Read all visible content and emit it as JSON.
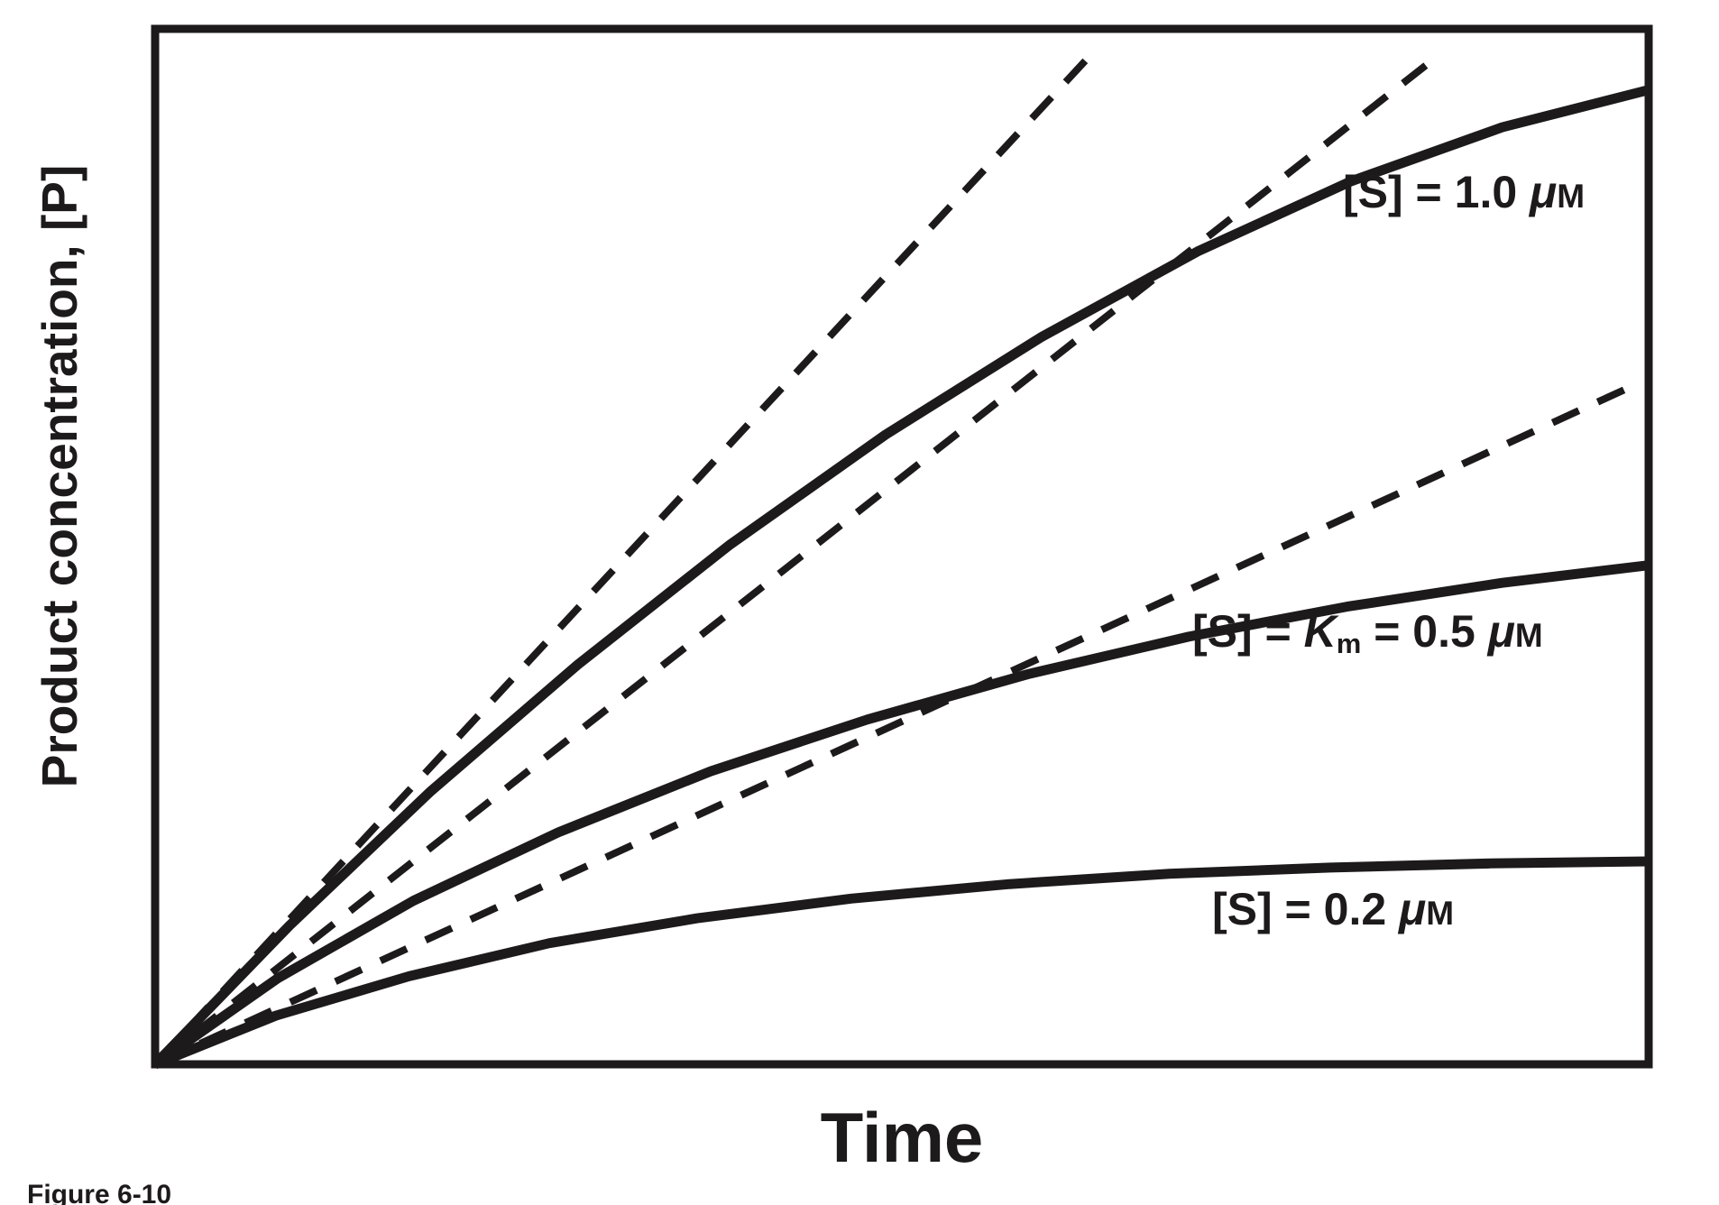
{
  "figure": {
    "caption": "Figure 6-10",
    "xlabel": "Time",
    "ylabel": "Product concentration, [P]"
  },
  "labels": [
    {
      "pre": "[S] = 1.0 ",
      "k": "",
      "ksub": "",
      "mid": "",
      "mu": "μ",
      "unit": "M"
    },
    {
      "pre": "[S] = ",
      "k": "K",
      "ksub": "m",
      "mid": " = 0.5 ",
      "mu": "μ",
      "unit": "M"
    },
    {
      "pre": "[S] = 0.2 ",
      "k": "",
      "ksub": "",
      "mid": "",
      "mu": "μ",
      "unit": "M"
    }
  ],
  "colors": {
    "ink": "#1d1a1b",
    "background": "#ffffff"
  },
  "chart_data": {
    "type": "line",
    "title": "",
    "xlabel": "Time",
    "ylabel": "Product concentration, [P]",
    "x_ticks": [],
    "y_ticks": [],
    "xlim": [
      0,
      1
    ],
    "ylim": [
      0,
      1
    ],
    "grid": false,
    "legend_position": "inline-labels",
    "note": "Axes are unlabeled; values are estimated in relative (arbitrary) units. Solid lines are enzyme progress curves; dashed lines are initial-velocity tangents at t = 0.",
    "series": [
      {
        "name": "[S] = 1.0 μM",
        "role": "progress-curve",
        "line_style": "solid",
        "x": [
          0,
          0.09,
          0.184,
          0.283,
          0.385,
          0.489,
          0.593,
          0.698,
          0.801,
          0.902,
          1.0
        ],
        "y": [
          0,
          0.134,
          0.263,
          0.386,
          0.502,
          0.608,
          0.702,
          0.785,
          0.853,
          0.905,
          0.941
        ]
      },
      {
        "name": "[S] = Km = 0.5 μM",
        "role": "progress-curve",
        "line_style": "solid",
        "x": [
          0,
          0.082,
          0.173,
          0.27,
          0.372,
          0.477,
          0.585,
          0.692,
          0.798,
          0.902,
          1.0
        ],
        "y": [
          0,
          0.083,
          0.158,
          0.224,
          0.283,
          0.333,
          0.377,
          0.413,
          0.442,
          0.465,
          0.482
        ]
      },
      {
        "name": "[S] = 0.2 μM",
        "role": "progress-curve",
        "line_style": "solid",
        "x": [
          0,
          0.081,
          0.17,
          0.264,
          0.363,
          0.466,
          0.572,
          0.679,
          0.787,
          0.894,
          1.0
        ],
        "y": [
          0,
          0.047,
          0.085,
          0.117,
          0.141,
          0.16,
          0.174,
          0.184,
          0.19,
          0.194,
          0.196
        ]
      },
      {
        "name": "initial velocity tangent, [S] = 1.0 μM",
        "role": "tangent",
        "line_style": "dashed",
        "x": [
          0,
          0.624
        ],
        "y": [
          0,
          0.971
        ]
      },
      {
        "name": "initial velocity tangent, [S] = 0.5 μM",
        "role": "tangent",
        "line_style": "dashed",
        "x": [
          0,
          0.859
        ],
        "y": [
          0,
          0.974
        ]
      },
      {
        "name": "initial velocity tangent, [S] = 0.2 μM",
        "role": "tangent",
        "line_style": "dashed",
        "x": [
          0,
          0.986
        ],
        "y": [
          0,
          0.653
        ]
      }
    ]
  }
}
